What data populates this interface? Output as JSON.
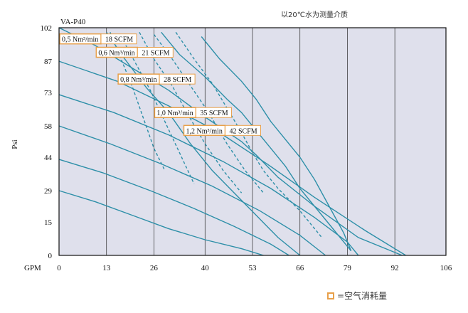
{
  "note": "以20℃水为测量介质",
  "legend": {
    "label": "=空气消耗量",
    "color": "#e8a04a"
  },
  "chart_data": {
    "type": "line",
    "title": "VA-P40",
    "xlabel": "GPM",
    "ylabel": "Psi",
    "xlim": [
      0,
      106
    ],
    "ylim": [
      0,
      102
    ],
    "x_ticks": [
      "0",
      "13",
      "26",
      "40",
      "53",
      "66",
      "79",
      "92",
      "106"
    ],
    "y_ticks": [
      "0",
      "15",
      "29",
      "44",
      "58",
      "73",
      "87",
      "102"
    ],
    "grid": "vertical",
    "colors": {
      "plot_bg": "#dfe0ec",
      "curve": "#2d8fa8",
      "label_border": "#e8a04a"
    },
    "series": [
      {
        "style": "solid",
        "points": [
          [
            0,
            29
          ],
          [
            10,
            24
          ],
          [
            20,
            18
          ],
          [
            30,
            12
          ],
          [
            40,
            7
          ],
          [
            50,
            3
          ],
          [
            56,
            0
          ]
        ]
      },
      {
        "style": "solid",
        "points": [
          [
            0,
            43
          ],
          [
            12,
            37
          ],
          [
            25,
            29
          ],
          [
            37,
            21
          ],
          [
            48,
            13
          ],
          [
            58,
            5
          ],
          [
            63,
            0
          ]
        ]
      },
      {
        "style": "solid",
        "points": [
          [
            0,
            58
          ],
          [
            14,
            50
          ],
          [
            28,
            41
          ],
          [
            42,
            31
          ],
          [
            55,
            20
          ],
          [
            66,
            9
          ],
          [
            73,
            0
          ]
        ]
      },
      {
        "style": "solid",
        "points": [
          [
            0,
            72
          ],
          [
            15,
            64
          ],
          [
            30,
            54
          ],
          [
            45,
            42
          ],
          [
            58,
            30
          ],
          [
            70,
            17
          ],
          [
            79,
            6
          ],
          [
            82,
            0
          ]
        ]
      },
      {
        "style": "solid",
        "points": [
          [
            0,
            87
          ],
          [
            16,
            78
          ],
          [
            30,
            67
          ],
          [
            44,
            55
          ],
          [
            57,
            41
          ],
          [
            70,
            26
          ],
          [
            84,
            11
          ],
          [
            95,
            0
          ]
        ]
      },
      {
        "style": "solid",
        "points": [
          [
            0,
            102
          ],
          [
            10,
            94
          ],
          [
            20,
            84
          ],
          [
            30,
            74
          ],
          [
            40,
            62
          ],
          [
            50,
            51
          ],
          [
            54,
            45
          ],
          [
            60,
            35
          ],
          [
            70,
            22
          ],
          [
            82,
            8
          ],
          [
            94,
            0
          ]
        ]
      },
      {
        "style": "solid",
        "points": [
          [
            13,
            100
          ],
          [
            18,
            88
          ],
          [
            24,
            75
          ],
          [
            30,
            64
          ],
          [
            36,
            50
          ],
          [
            42,
            38
          ],
          [
            48,
            28
          ],
          [
            54,
            18
          ],
          [
            60,
            8
          ],
          [
            66,
            0
          ]
        ]
      },
      {
        "style": "solid",
        "points": [
          [
            28,
            100
          ],
          [
            33,
            90
          ],
          [
            40,
            80
          ],
          [
            46,
            70
          ],
          [
            50,
            64
          ],
          [
            54,
            56
          ],
          [
            58,
            48
          ],
          [
            62,
            40
          ],
          [
            66,
            30
          ],
          [
            72,
            18
          ],
          [
            80,
            2
          ]
        ]
      },
      {
        "style": "solid",
        "points": [
          [
            39,
            98
          ],
          [
            44,
            88
          ],
          [
            50,
            78
          ],
          [
            54,
            70
          ],
          [
            58,
            60
          ],
          [
            62,
            52
          ],
          [
            66,
            44
          ],
          [
            70,
            34
          ],
          [
            74,
            22
          ],
          [
            78,
            10
          ],
          [
            80,
            2
          ]
        ]
      },
      {
        "style": "dashed",
        "points": [
          [
            14,
            100
          ],
          [
            17,
            88
          ],
          [
            20,
            76
          ],
          [
            23,
            62
          ],
          [
            26,
            48
          ],
          [
            29,
            38
          ]
        ]
      },
      {
        "style": "dashed",
        "points": [
          [
            17,
            98
          ],
          [
            21,
            86
          ],
          [
            25,
            74
          ],
          [
            29,
            60
          ],
          [
            33,
            46
          ],
          [
            37,
            32
          ]
        ]
      },
      {
        "style": "dashed",
        "points": [
          [
            22,
            100
          ],
          [
            26,
            88
          ],
          [
            31,
            76
          ],
          [
            35,
            64
          ],
          [
            40,
            50
          ],
          [
            45,
            38
          ],
          [
            50,
            28
          ]
        ]
      },
      {
        "style": "dashed",
        "points": [
          [
            26,
            99
          ],
          [
            31,
            88
          ],
          [
            36,
            76
          ],
          [
            41,
            64
          ],
          [
            46,
            50
          ],
          [
            51,
            38
          ],
          [
            56,
            28
          ]
        ]
      },
      {
        "style": "dashed",
        "points": [
          [
            32,
            100
          ],
          [
            37,
            88
          ],
          [
            42,
            77
          ],
          [
            46,
            66
          ],
          [
            50,
            55
          ],
          [
            53,
            46
          ],
          [
            56,
            38
          ],
          [
            60,
            30
          ],
          [
            66,
            20
          ],
          [
            72,
            8
          ]
        ]
      }
    ],
    "annotations": [
      {
        "text": "0,5 Nm³/min",
        "scfm": "18 SCFM",
        "x": 0,
        "y": 97
      },
      {
        "text": "0,6 Nm³/min",
        "scfm": "21 SCFM",
        "x": 10,
        "y": 91
      },
      {
        "text": "0,8 Nm³/min",
        "scfm": "28 SCFM",
        "x": 16,
        "y": 79
      },
      {
        "text": "1,0 Nm³/min",
        "scfm": "35 SCFM",
        "x": 26,
        "y": 64
      },
      {
        "text": "1,2 Nm³/min",
        "scfm": "42 SCFM",
        "x": 34,
        "y": 56
      }
    ]
  }
}
